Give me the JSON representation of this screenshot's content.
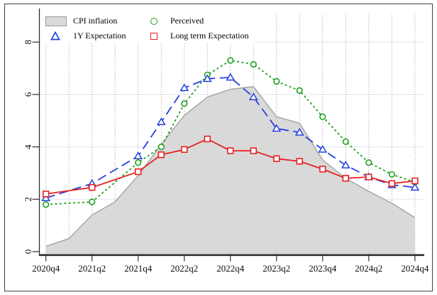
{
  "legend": {
    "items": [
      {
        "label": "CPI inflation",
        "marker": "area-swatch"
      },
      {
        "label": "Perceived",
        "marker": "circle"
      },
      {
        "label": "1Y Expectation",
        "marker": "triangle"
      },
      {
        "label": "Long term Expectation",
        "marker": "square"
      }
    ]
  },
  "colors": {
    "area_fill": "#d9d9d9",
    "area_edge": "#a3a3a3",
    "perceived": "#20a020",
    "one_year": "#2540e0",
    "long_term": "#e62222",
    "grid_vertical": "#8c8c8c",
    "grid_horizontal": "#dfe9ef",
    "axis": "#2e2e2e"
  },
  "chart_data": {
    "type": "line",
    "title": "",
    "xlabel": "",
    "ylabel": "",
    "categories": [
      "2020q4",
      "2021q1",
      "2021q2",
      "2021q3",
      "2021q4",
      "2022q1",
      "2022q2",
      "2022q3",
      "2022q4",
      "2023q1",
      "2023q2",
      "2023q3",
      "2023q4",
      "2024q1",
      "2024q2",
      "2024q3",
      "2024q4"
    ],
    "xtick_labels": [
      "2020q4",
      "2021q2",
      "2021q4",
      "2022q2",
      "2022q4",
      "2023q2",
      "2023q4",
      "2024q2",
      "2024q4"
    ],
    "yticks": [
      0,
      2,
      4,
      6,
      8
    ],
    "ylim": [
      0,
      8.8
    ],
    "grid": {
      "vertical": "dotted every quarter",
      "horizontal": "light lines at yticks"
    },
    "legend_position": "top-left inside plot",
    "series": [
      {
        "name": "CPI inflation",
        "style": "area",
        "marker": "none",
        "color": "#d9d9d9",
        "edge": "#a3a3a3",
        "values": [
          0.2,
          0.5,
          1.4,
          1.9,
          2.9,
          4.1,
          5.2,
          5.9,
          6.2,
          6.3,
          5.15,
          4.9,
          3.5,
          2.8,
          2.3,
          1.85,
          1.3
        ]
      },
      {
        "name": "Perceived",
        "style": "dashed",
        "marker": "circle",
        "color": "#20a020",
        "values": [
          1.8,
          null,
          1.9,
          null,
          3.4,
          4.0,
          5.65,
          6.75,
          7.3,
          7.15,
          6.5,
          6.15,
          5.15,
          4.2,
          3.4,
          2.95,
          2.65
        ]
      },
      {
        "name": "1Y Expectation",
        "style": "long-dash",
        "marker": "triangle",
        "color": "#2540e0",
        "values": [
          2.05,
          null,
          2.6,
          null,
          3.65,
          4.95,
          6.25,
          6.6,
          6.65,
          5.9,
          4.7,
          4.55,
          3.9,
          3.3,
          2.85,
          2.55,
          2.45
        ]
      },
      {
        "name": "Long term Expectation",
        "style": "solid",
        "marker": "square",
        "color": "#e62222",
        "values": [
          2.2,
          null,
          2.45,
          null,
          3.05,
          3.7,
          3.9,
          4.3,
          3.85,
          3.85,
          3.55,
          3.45,
          3.15,
          2.8,
          2.85,
          2.6,
          2.7
        ]
      }
    ]
  }
}
